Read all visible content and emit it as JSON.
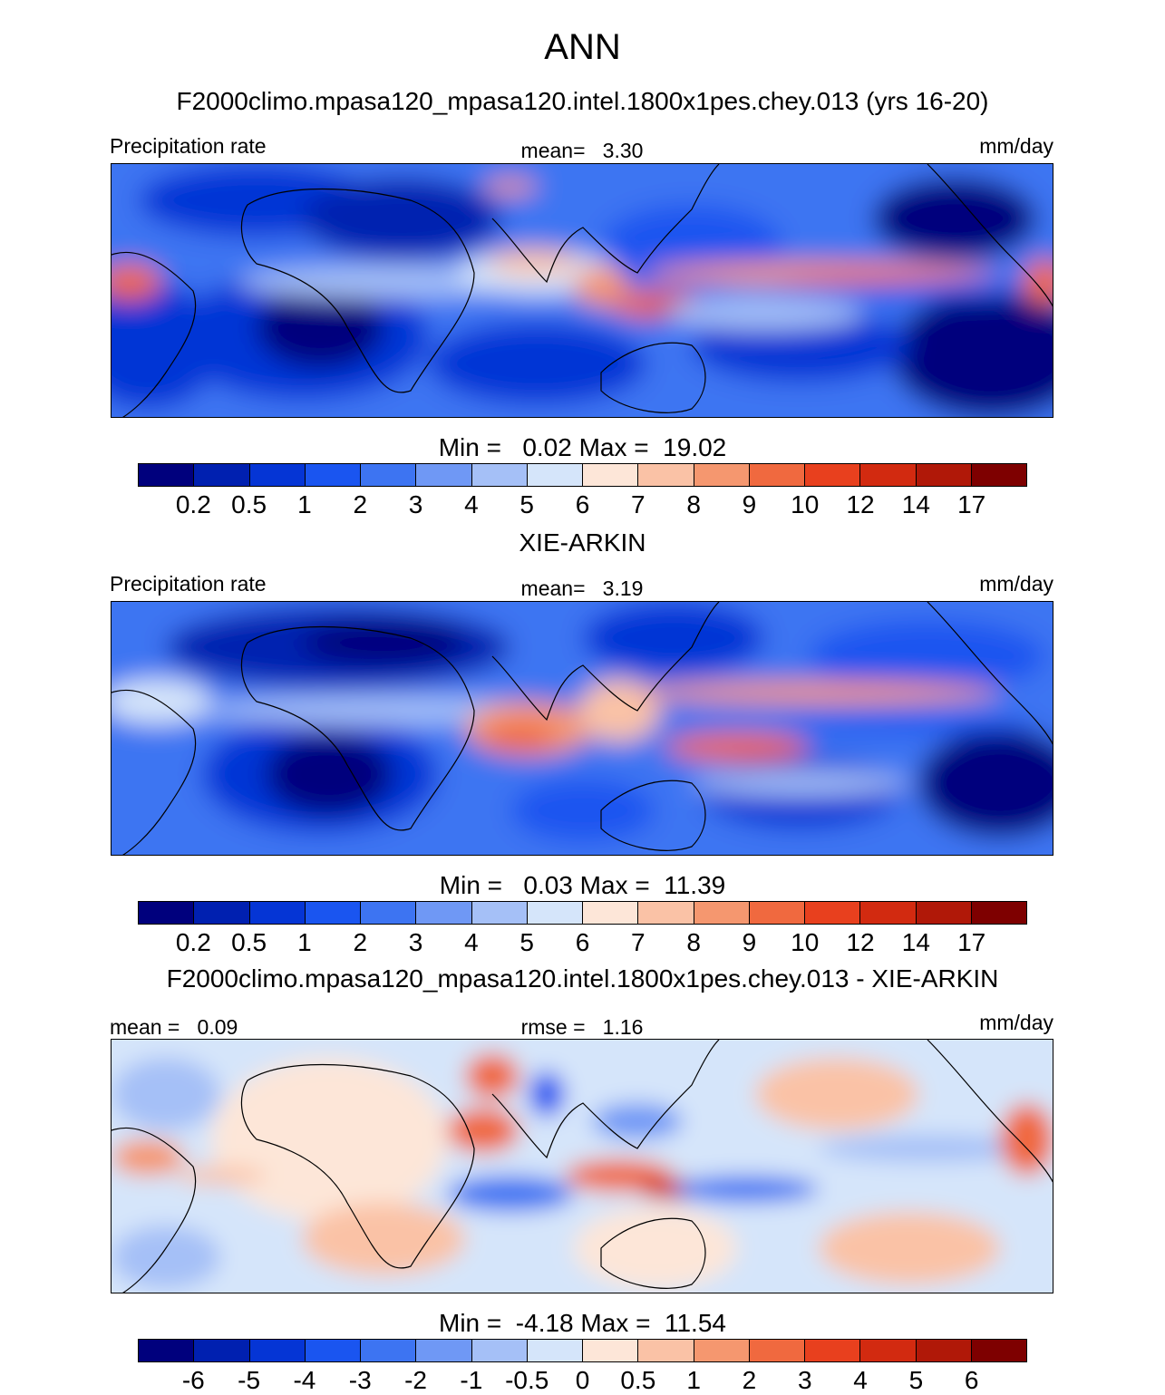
{
  "title": "ANN",
  "colors": {
    "scale": [
      "#00007d",
      "#0020b0",
      "#0535d5",
      "#1a55f0",
      "#3d74f2",
      "#6f98f5",
      "#a5c0f7",
      "#d5e5fa",
      "#fde6d8",
      "#fac2a6",
      "#f5976f",
      "#f0693f",
      "#e8401e",
      "#d22a10",
      "#b01808",
      "#7e0000"
    ]
  },
  "panels": [
    {
      "case_title": "F2000climo.mpasa120_mpasa120.intel.1800x1pes.chey.013 (yrs 16-20)",
      "left_label": "Precipitation rate",
      "center_label": "mean=   3.30",
      "right_label": "mm/day",
      "min_max": "Min =   0.02 Max =  19.02",
      "tick_labels": [
        "0.2",
        "0.5",
        "1",
        "2",
        "3",
        "4",
        "5",
        "6",
        "7",
        "8",
        "9",
        "10",
        "12",
        "14",
        "17"
      ]
    },
    {
      "case_title": "XIE-ARKIN",
      "left_label": "Precipitation rate",
      "center_label": "mean=   3.19",
      "right_label": "mm/day",
      "min_max": "Min =   0.03 Max =  11.39",
      "tick_labels": [
        "0.2",
        "0.5",
        "1",
        "2",
        "3",
        "4",
        "5",
        "6",
        "7",
        "8",
        "9",
        "10",
        "12",
        "14",
        "17"
      ]
    },
    {
      "case_title": "F2000climo.mpasa120_mpasa120.intel.1800x1pes.chey.013 - XIE-ARKIN",
      "left_label": "mean =   0.09",
      "center_label": "rmse =   1.16",
      "right_label": "mm/day",
      "min_max": "Min =  -4.18 Max =  11.54",
      "tick_labels": [
        "-6",
        "-5",
        "-4",
        "-3",
        "-2",
        "-1",
        "-0.5",
        "0",
        "0.5",
        "1",
        "2",
        "3",
        "4",
        "5",
        "6"
      ]
    }
  ]
}
